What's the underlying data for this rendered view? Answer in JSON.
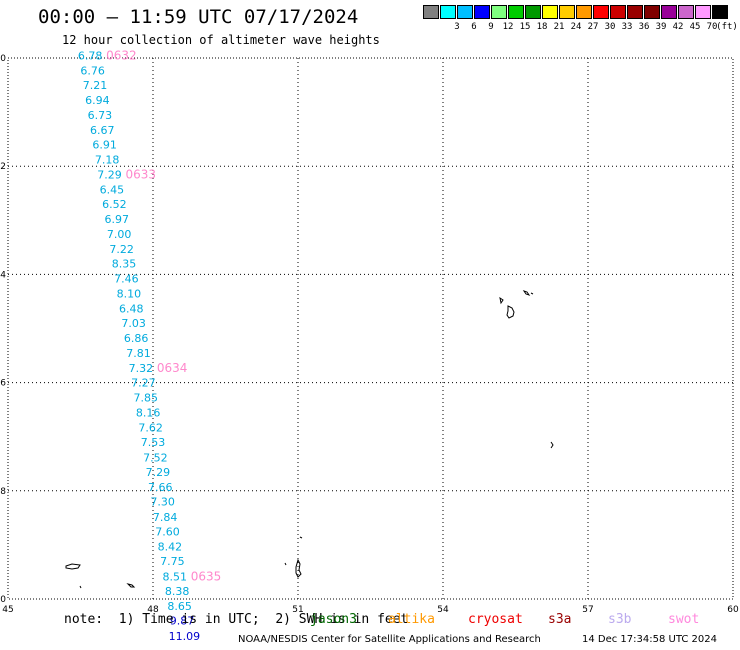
{
  "title": "00:00 – 11:59 UTC 07/17/2024",
  "subtitle": "12 hour collection of altimeter wave heights",
  "legend": {
    "unit": "(ft)",
    "items": [
      {
        "label": "",
        "color": "#808080"
      },
      {
        "label": "3",
        "color": "#00ffff"
      },
      {
        "label": "6",
        "color": "#00bfff"
      },
      {
        "label": "9",
        "color": "#0000ff"
      },
      {
        "label": "12",
        "color": "#80ff80"
      },
      {
        "label": "15",
        "color": "#00cc00"
      },
      {
        "label": "18",
        "color": "#009900"
      },
      {
        "label": "21",
        "color": "#ffff00"
      },
      {
        "label": "24",
        "color": "#ffcc00"
      },
      {
        "label": "27",
        "color": "#ff9900"
      },
      {
        "label": "30",
        "color": "#ff0000"
      },
      {
        "label": "33",
        "color": "#cc0000"
      },
      {
        "label": "36",
        "color": "#990000"
      },
      {
        "label": "39",
        "color": "#800000"
      },
      {
        "label": "42",
        "color": "#990099"
      },
      {
        "label": "45",
        "color": "#cc66cc"
      },
      {
        "label": "70",
        "color": "#ff99ff"
      },
      {
        "label": "",
        "color": "#000000"
      }
    ]
  },
  "map": {
    "lon_ticks": [
      "45",
      "48",
      "51",
      "54",
      "57",
      "60"
    ],
    "lat_ticks": [
      "0",
      "-2",
      "-4",
      "-6",
      "-8",
      "-10"
    ],
    "lon_range": [
      45,
      60
    ],
    "lat_range": [
      -10,
      0
    ],
    "grid": "dotted"
  },
  "track": {
    "color_high": "#00aadd",
    "color_low": "#0000cc",
    "time_color": "#ff88cc",
    "points": [
      {
        "lon": 46.7,
        "lat": 0.05,
        "value": "6.78"
      },
      {
        "lon": 46.75,
        "lat": -0.23,
        "value": "6.76"
      },
      {
        "lon": 46.8,
        "lat": -0.5,
        "value": "7.21"
      },
      {
        "lon": 46.85,
        "lat": -0.78,
        "value": "6.94"
      },
      {
        "lon": 46.9,
        "lat": -1.05,
        "value": "6.73"
      },
      {
        "lon": 46.95,
        "lat": -1.33,
        "value": "6.67"
      },
      {
        "lon": 47.0,
        "lat": -1.6,
        "value": "6.91"
      },
      {
        "lon": 47.05,
        "lat": -1.88,
        "value": "7.18"
      },
      {
        "lon": 47.1,
        "lat": -2.15,
        "value": "7.29"
      },
      {
        "lon": 47.15,
        "lat": -2.43,
        "value": "6.45"
      },
      {
        "lon": 47.2,
        "lat": -2.7,
        "value": "6.52"
      },
      {
        "lon": 47.25,
        "lat": -2.98,
        "value": "6.97"
      },
      {
        "lon": 47.3,
        "lat": -3.25,
        "value": "7.00"
      },
      {
        "lon": 47.35,
        "lat": -3.53,
        "value": "7.22"
      },
      {
        "lon": 47.4,
        "lat": -3.8,
        "value": "8.35"
      },
      {
        "lon": 47.45,
        "lat": -4.08,
        "value": "7.46"
      },
      {
        "lon": 47.5,
        "lat": -4.35,
        "value": "8.10"
      },
      {
        "lon": 47.55,
        "lat": -4.63,
        "value": "6.48"
      },
      {
        "lon": 47.6,
        "lat": -4.9,
        "value": "7.03"
      },
      {
        "lon": 47.65,
        "lat": -5.18,
        "value": "6.86"
      },
      {
        "lon": 47.7,
        "lat": -5.45,
        "value": "7.81"
      },
      {
        "lon": 47.75,
        "lat": -5.73,
        "value": "7.32"
      },
      {
        "lon": 47.8,
        "lat": -6.0,
        "value": "7.27"
      },
      {
        "lon": 47.85,
        "lat": -6.28,
        "value": "7.85"
      },
      {
        "lon": 47.9,
        "lat": -6.55,
        "value": "8.16"
      },
      {
        "lon": 47.95,
        "lat": -6.83,
        "value": "7.62"
      },
      {
        "lon": 48.0,
        "lat": -7.1,
        "value": "7.53"
      },
      {
        "lon": 48.05,
        "lat": -7.38,
        "value": "7.52"
      },
      {
        "lon": 48.1,
        "lat": -7.65,
        "value": "7.29"
      },
      {
        "lon": 48.15,
        "lat": -7.93,
        "value": "7.66"
      },
      {
        "lon": 48.2,
        "lat": -8.2,
        "value": "7.30"
      },
      {
        "lon": 48.25,
        "lat": -8.48,
        "value": "7.84"
      },
      {
        "lon": 48.3,
        "lat": -8.75,
        "value": "7.60"
      },
      {
        "lon": 48.35,
        "lat": -9.03,
        "value": "8.42"
      },
      {
        "lon": 48.4,
        "lat": -9.3,
        "value": "7.75"
      },
      {
        "lon": 48.45,
        "lat": -9.58,
        "value": "8.51"
      },
      {
        "lon": 48.5,
        "lat": -9.85,
        "value": "8.38"
      },
      {
        "lon": 48.55,
        "lat": -10.13,
        "value": "8.65"
      },
      {
        "lon": 48.6,
        "lat": -10.4,
        "value": "9.87"
      },
      {
        "lon": 48.65,
        "lat": -10.68,
        "value": "11.09"
      }
    ],
    "times": [
      {
        "lon": 46.7,
        "lat": 0.05,
        "label": "0632"
      },
      {
        "lon": 47.1,
        "lat": -2.15,
        "label": "0633"
      },
      {
        "lon": 47.75,
        "lat": -5.73,
        "label": "0634"
      },
      {
        "lon": 48.45,
        "lat": -9.58,
        "label": "0635"
      }
    ]
  },
  "footer": {
    "note": "note:  1) Time is in UTC;  2) SWH is in feet",
    "satellites": [
      {
        "name": "jason3",
        "color": "#006600"
      },
      {
        "name": "altika",
        "color": "#ff9900"
      },
      {
        "name": "cryosat",
        "color": "#ee0000"
      },
      {
        "name": "s3a",
        "color": "#990000"
      },
      {
        "name": "s3b",
        "color": "#bbaaee"
      },
      {
        "name": "swot",
        "color": "#ff88dd"
      }
    ],
    "credit": "NOAA/NESDIS Center for Satellite Applications and Research",
    "date": "14 Dec 17:34:58 UTC 2024"
  }
}
